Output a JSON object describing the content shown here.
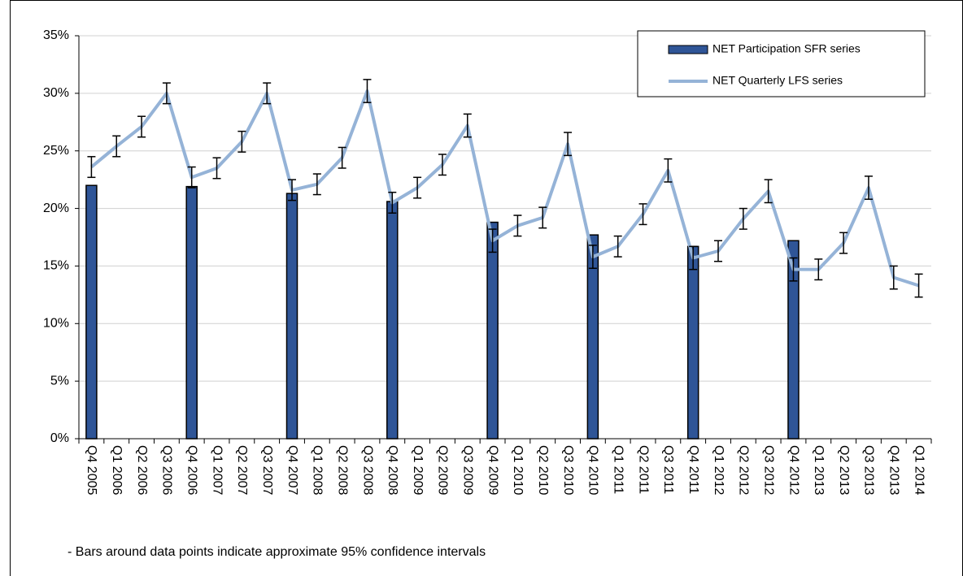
{
  "chart_data": {
    "type": "bar_line",
    "categories": [
      "Q4 2005",
      "Q1 2006",
      "Q2 2006",
      "Q3 2006",
      "Q4 2006",
      "Q1 2007",
      "Q2 2007",
      "Q3 2007",
      "Q4 2007",
      "Q1 2008",
      "Q2 2008",
      "Q3 2008",
      "Q4 2008",
      "Q1 2009",
      "Q2 2009",
      "Q3 2009",
      "Q4 2009",
      "Q1 2010",
      "Q2 2010",
      "Q3 2010",
      "Q4 2010",
      "Q1 2011",
      "Q2 2011",
      "Q3 2011",
      "Q4 2011",
      "Q1 2012",
      "Q2 2012",
      "Q3 2012",
      "Q4 2012",
      "Q1 2013",
      "Q2 2013",
      "Q3 2013",
      "Q4 2013",
      "Q1 2014"
    ],
    "series": [
      {
        "name": "NET Participation SFR series",
        "kind": "bar",
        "color": "#2f5597",
        "values": [
          22.0,
          null,
          null,
          null,
          21.9,
          null,
          null,
          null,
          21.3,
          null,
          null,
          null,
          20.6,
          null,
          null,
          null,
          18.8,
          null,
          null,
          null,
          17.7,
          null,
          null,
          null,
          16.7,
          null,
          null,
          null,
          17.2,
          null,
          null,
          null,
          null,
          null
        ]
      },
      {
        "name": "NET Quarterly LFS series",
        "kind": "line",
        "color": "#95b3d7",
        "values": [
          23.6,
          25.4,
          27.1,
          30.0,
          22.7,
          23.5,
          25.8,
          30.0,
          21.6,
          22.1,
          24.4,
          30.2,
          20.5,
          21.8,
          23.8,
          27.2,
          17.2,
          18.5,
          19.2,
          25.6,
          15.8,
          16.7,
          19.5,
          23.3,
          15.7,
          16.3,
          19.1,
          21.5,
          14.7,
          14.7,
          17.0,
          21.8,
          14.0,
          13.3
        ],
        "errors": [
          0.9,
          0.9,
          0.9,
          0.9,
          0.9,
          0.9,
          0.9,
          0.9,
          0.9,
          0.9,
          0.9,
          1.0,
          0.9,
          0.9,
          0.9,
          1.0,
          1.0,
          0.9,
          0.9,
          1.0,
          1.0,
          0.9,
          0.9,
          1.0,
          1.0,
          0.9,
          0.9,
          1.0,
          1.0,
          0.9,
          0.9,
          1.0,
          1.0,
          1.0
        ]
      }
    ],
    "ylim": [
      0,
      35
    ],
    "yticks": [
      {
        "value": 0,
        "label": "0%"
      },
      {
        "value": 5,
        "label": "5%"
      },
      {
        "value": 10,
        "label": "10%"
      },
      {
        "value": 15,
        "label": "15%"
      },
      {
        "value": 20,
        "label": "20%"
      },
      {
        "value": 25,
        "label": "25%"
      },
      {
        "value": 30,
        "label": "30%"
      },
      {
        "value": 35,
        "label": "35%"
      }
    ],
    "grid": true,
    "legend": "top-right",
    "note": "- Bars around data points indicate approximate 95% confidence intervals"
  }
}
